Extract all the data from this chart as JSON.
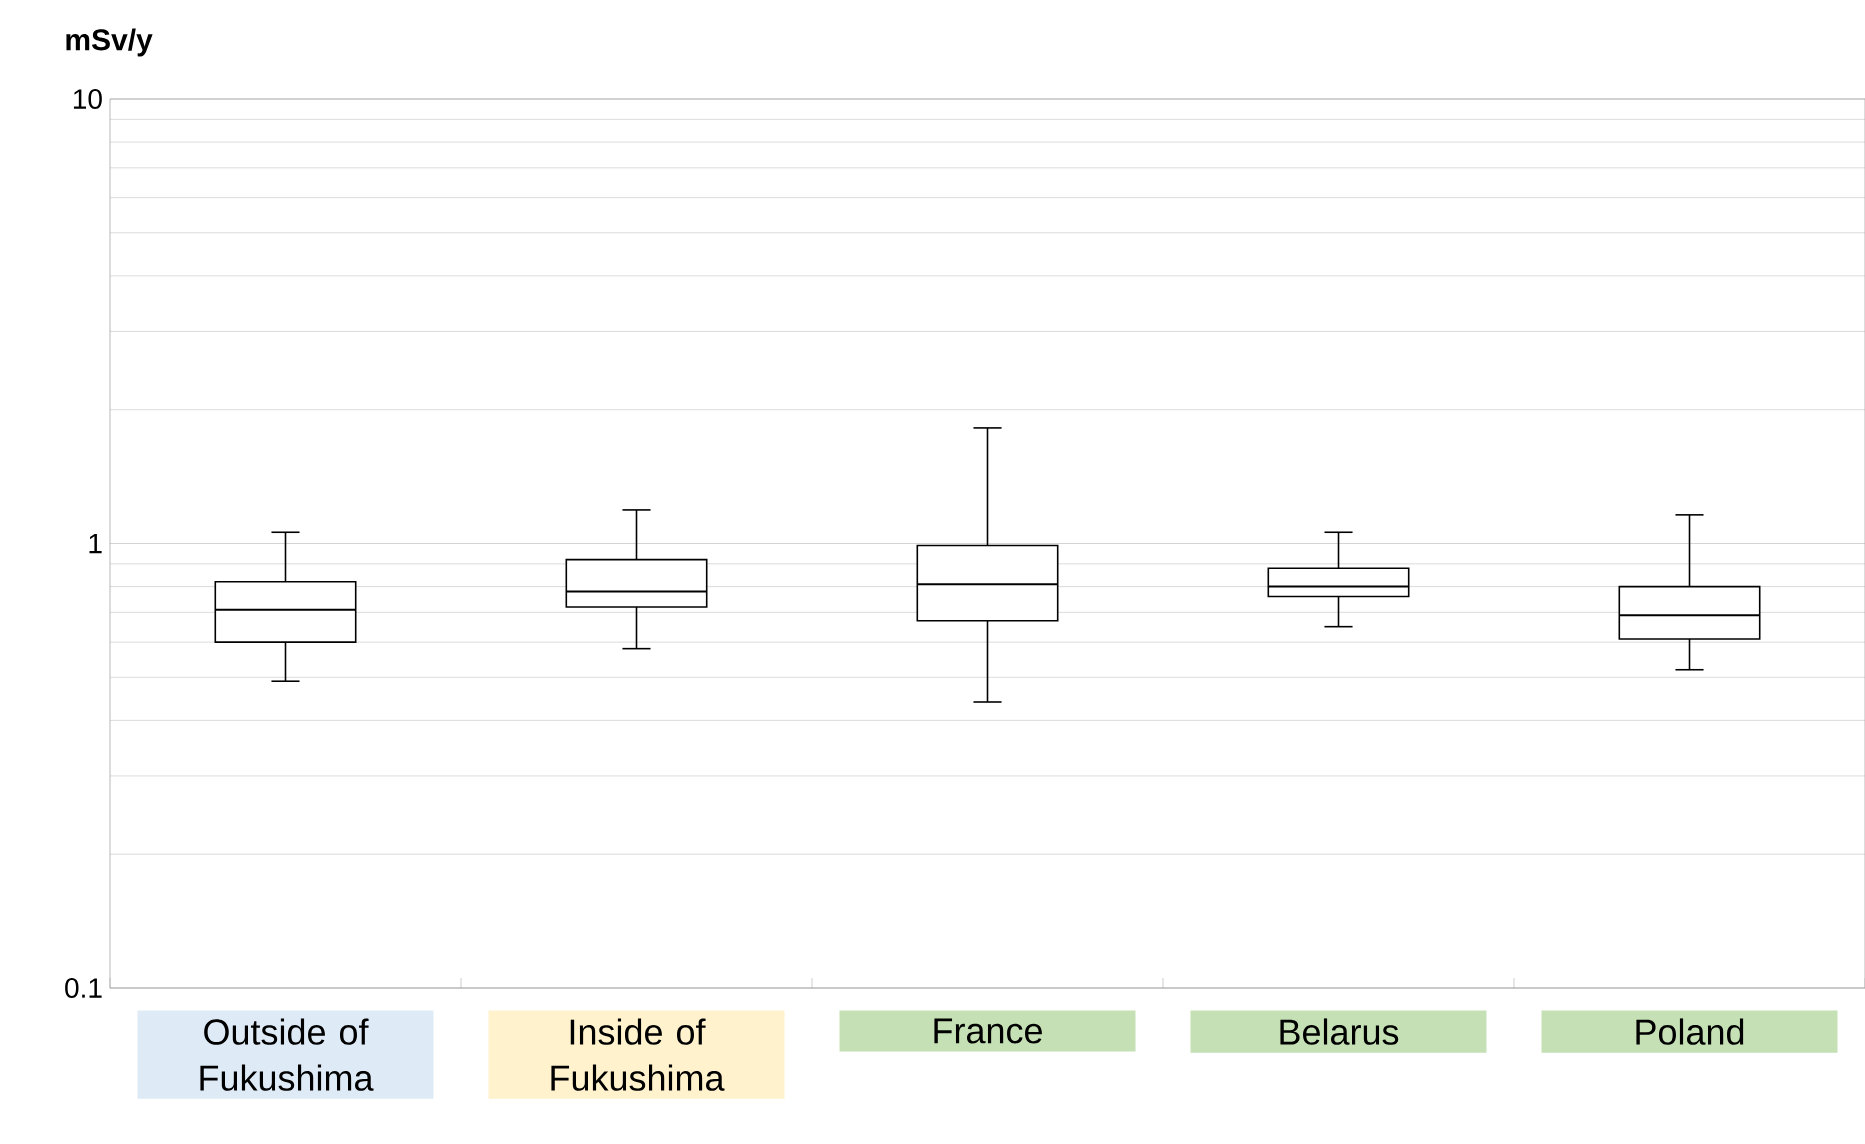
{
  "chart_data": {
    "type": "box",
    "ylabel": "mSv/y",
    "categories": [
      "Outside of Fukushima",
      "Inside of Fukushima",
      "France",
      "Belarus",
      "Poland"
    ],
    "boxes": [
      {
        "low": 0.49,
        "q1": 0.6,
        "median": 0.71,
        "q3": 0.82,
        "high": 1.06
      },
      {
        "low": 0.58,
        "q1": 0.72,
        "median": 0.78,
        "q3": 0.92,
        "high": 1.19
      },
      {
        "low": 0.44,
        "q1": 0.67,
        "median": 0.81,
        "q3": 0.99,
        "high": 1.82
      },
      {
        "low": 0.65,
        "q1": 0.76,
        "median": 0.8,
        "q3": 0.88,
        "high": 1.06
      },
      {
        "low": 0.52,
        "q1": 0.61,
        "median": 0.69,
        "q3": 0.8,
        "high": 1.16
      }
    ],
    "log": "y",
    "ylim": [
      0.1,
      10
    ],
    "yticks": [
      0.1,
      1,
      10
    ],
    "grid": "y"
  }
}
